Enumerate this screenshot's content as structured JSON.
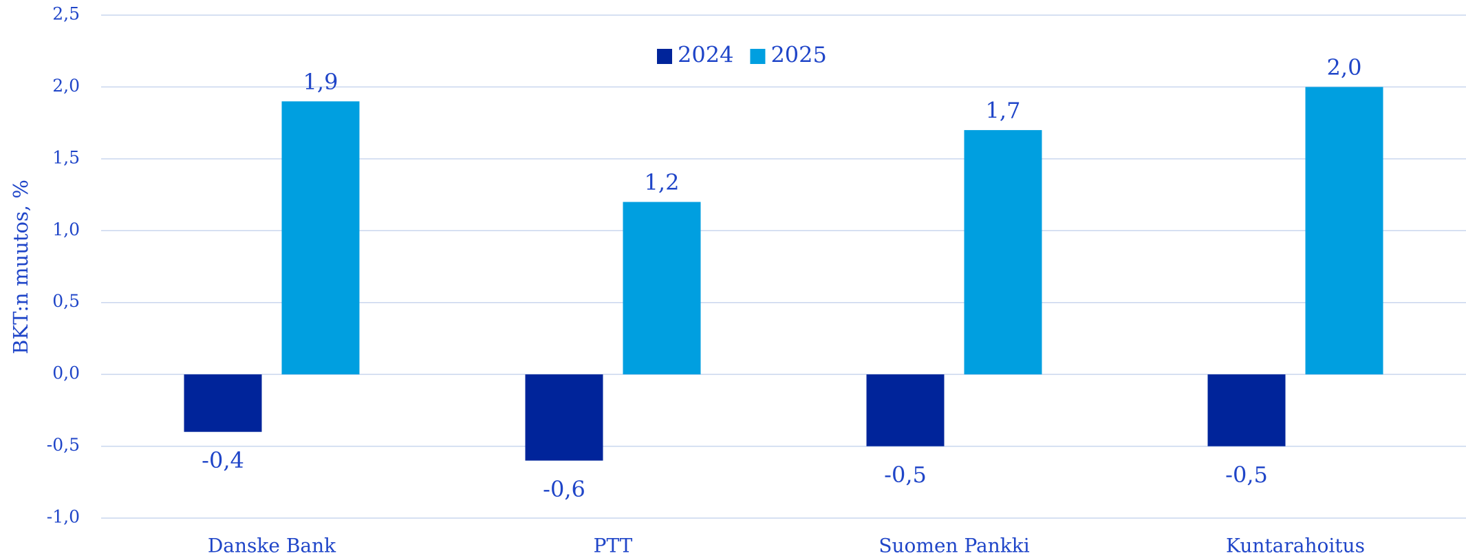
{
  "chart_data": {
    "type": "bar",
    "y_axis_label": "BKT:n muutos, %",
    "categories": [
      "Danske Bank",
      "PTT",
      "Suomen Pankki",
      "Kuntarahoitus"
    ],
    "series": [
      {
        "name": "2024",
        "color": "#00249a",
        "values": [
          -0.4,
          -0.6,
          -0.5,
          -0.5
        ],
        "value_labels": [
          "-0,4",
          "-0,6",
          "-0,5",
          "-0,5"
        ]
      },
      {
        "name": "2025",
        "color": "#009fe0",
        "values": [
          1.9,
          1.2,
          1.7,
          2.0
        ],
        "value_labels": [
          "1,9",
          "1,2",
          "1,7",
          "2,0"
        ]
      }
    ],
    "ylim": [
      -1.0,
      2.5
    ],
    "yticks": [
      {
        "value": -1.0,
        "label": "-1,0"
      },
      {
        "value": -0.5,
        "label": "-0,5"
      },
      {
        "value": 0.0,
        "label": "0,0"
      },
      {
        "value": 0.5,
        "label": "0,5"
      },
      {
        "value": 1.0,
        "label": "1,0"
      },
      {
        "value": 1.5,
        "label": "1,5"
      },
      {
        "value": 2.0,
        "label": "2,0"
      },
      {
        "value": 2.5,
        "label": "2,5"
      }
    ],
    "grid": true,
    "legend": "top"
  }
}
